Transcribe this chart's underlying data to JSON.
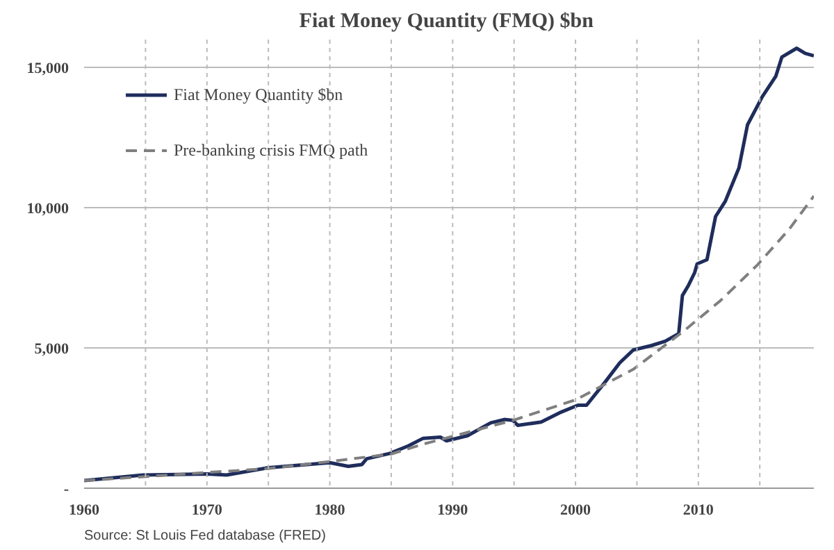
{
  "chart_data": {
    "type": "line",
    "title": "Fiat Money Quantity (FMQ)  $bn",
    "annotations": [
      "Source: St Louis Fed  database (FRED)"
    ],
    "series": [
      {
        "name": "Fiat Money Quantity $bn",
        "color": "#1f2d5c",
        "line_style": "solid",
        "x": [
          1960,
          1964.8,
          1970,
          1971.6,
          1975,
          1980,
          1981.5,
          1982.6,
          1983,
          1984.9,
          1986.4,
          1987.6,
          1989,
          1989.5,
          1991.2,
          1993.1,
          1994.2,
          1994.9,
          1995.3,
          1997.2,
          1998.7,
          2000.2,
          2000.9,
          2002.4,
          2003.6,
          2004.7,
          2006.2,
          2007.3,
          2008.4,
          2008.7,
          2009.2,
          2009.7,
          2009.9,
          2010.7,
          2011.4,
          2012.2,
          2013.3,
          2014.0,
          2015.2,
          2016.3,
          2016.8,
          2018.0,
          2018.7,
          2019.4
        ],
        "values": [
          270,
          470,
          510,
          470,
          730,
          910,
          780,
          840,
          1050,
          1240,
          1510,
          1780,
          1820,
          1690,
          1870,
          2330,
          2450,
          2420,
          2240,
          2360,
          2690,
          2960,
          2960,
          3780,
          4470,
          4930,
          5090,
          5240,
          5510,
          6870,
          7240,
          7690,
          8000,
          8150,
          9690,
          10240,
          11420,
          12960,
          13960,
          14690,
          15380,
          15690,
          15510,
          15420
        ]
      },
      {
        "name": "Pre-banking crisis FMQ path",
        "color": "#7f7f7f",
        "line_style": "dashed",
        "x": [
          1960,
          1970,
          1975,
          1980,
          1985,
          1987.5,
          1994.9,
          2000,
          2004.7,
          2008.8,
          2011.8,
          2014.8,
          2017.4,
          2019.4
        ],
        "values": [
          270,
          560,
          700,
          950,
          1220,
          1560,
          2420,
          3150,
          4240,
          5600,
          6690,
          7960,
          9240,
          10420
        ]
      }
    ],
    "xlim": [
      1960,
      2019.4
    ],
    "xticks": [
      1960,
      1970,
      1980,
      1990,
      2000,
      2010
    ],
    "ref_lines": [
      {
        "axis": "x",
        "value": 1965,
        "color": "#bbbbbb",
        "line_style": "dashed"
      },
      {
        "axis": "x",
        "value": 1970,
        "color": "#bbbbbb",
        "line_style": "dashed"
      },
      {
        "axis": "x",
        "value": 1975,
        "color": "#bbbbbb",
        "line_style": "dashed"
      },
      {
        "axis": "x",
        "value": 1980,
        "color": "#bbbbbb",
        "line_style": "dashed"
      },
      {
        "axis": "x",
        "value": 1985,
        "color": "#bbbbbb",
        "line_style": "dashed"
      },
      {
        "axis": "x",
        "value": 1990,
        "color": "#bbbbbb",
        "line_style": "dashed"
      },
      {
        "axis": "x",
        "value": 1995,
        "color": "#bbbbbb",
        "line_style": "dashed"
      },
      {
        "axis": "x",
        "value": 2000,
        "color": "#bbbbbb",
        "line_style": "dashed"
      },
      {
        "axis": "x",
        "value": 2005,
        "color": "#bbbbbb",
        "line_style": "dashed"
      },
      {
        "axis": "x",
        "value": 2010,
        "color": "#bbbbbb",
        "line_style": "dashed"
      },
      {
        "axis": "x",
        "value": 2015,
        "color": "#bbbbbb",
        "line_style": "dashed"
      }
    ],
    "ylim": [
      0,
      16000
    ],
    "yticks": [
      {
        "value": 0,
        "label": "-"
      },
      {
        "value": 5000,
        "label": "5,000"
      },
      {
        "value": 10000,
        "label": "10,000"
      },
      {
        "value": 15000,
        "label": "15,000"
      }
    ],
    "grid": "y",
    "legend": "top left"
  }
}
